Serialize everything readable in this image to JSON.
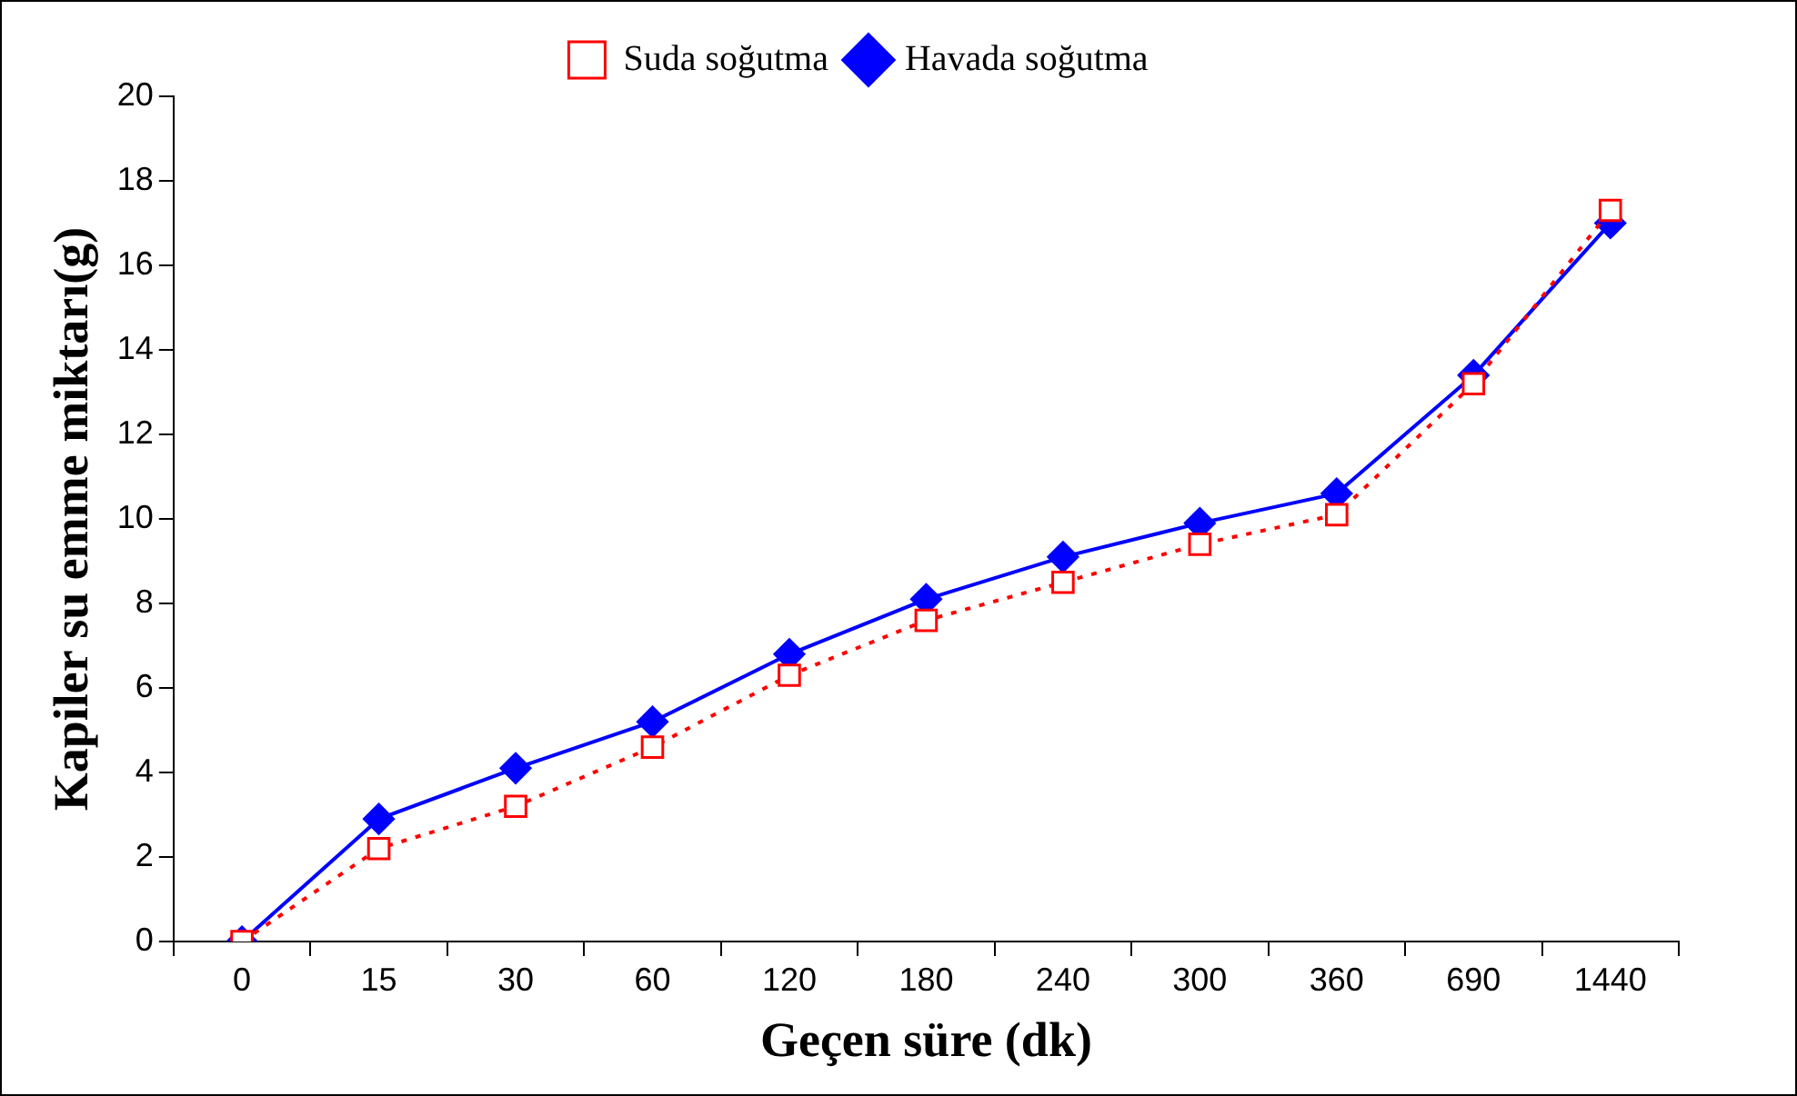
{
  "chart_data": {
    "type": "line",
    "xlabel": "Geçen süre (dk)",
    "ylabel": "Kapiler su emme miktarı(g)",
    "categories": [
      "0",
      "15",
      "30",
      "60",
      "120",
      "180",
      "240",
      "300",
      "360",
      "690",
      "1440"
    ],
    "series": [
      {
        "name": "Havada soğutma",
        "color": "#0000ff",
        "marker": "diamond",
        "line_style": "solid",
        "values": [
          0,
          2.9,
          4.1,
          5.2,
          6.8,
          8.1,
          9.1,
          9.9,
          10.6,
          13.4,
          17.0
        ]
      },
      {
        "name": "Suda soğutma",
        "color": "#ff0000",
        "marker": "square",
        "line_style": "dotted",
        "values": [
          0,
          2.2,
          3.2,
          4.6,
          6.3,
          7.6,
          8.5,
          9.4,
          10.1,
          13.2,
          17.3
        ]
      }
    ],
    "ylim": [
      0,
      20
    ],
    "yticks": [
      0,
      2,
      4,
      6,
      8,
      10,
      12,
      14,
      16,
      18,
      20
    ],
    "grid": false,
    "legend": "top"
  }
}
